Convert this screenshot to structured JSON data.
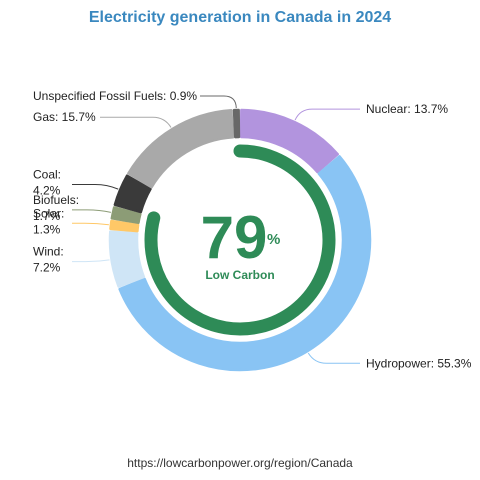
{
  "chart_data": {
    "type": "pie",
    "title": "Electricity generation in Canada in 2024",
    "categories": [
      "Nuclear",
      "Hydropower",
      "Wind",
      "Solar",
      "Biofuels",
      "Coal",
      "Gas",
      "Unspecified Fossil Fuels"
    ],
    "values": [
      13.7,
      55.3,
      7.2,
      1.3,
      1.7,
      4.2,
      15.7,
      0.9
    ],
    "slice_labels": [
      [
        "Nuclear: 13.7%"
      ],
      [
        "Hydropower: 55.3%"
      ],
      [
        "Wind:",
        "7.2%"
      ],
      [
        "Solar:",
        "1.3%"
      ],
      [
        "Biofuels:",
        "1.7%"
      ],
      [
        "Coal:",
        "4.2%"
      ],
      [
        "Gas: 15.7%"
      ],
      [
        "Unspecified Fossil Fuels: 0.9%"
      ]
    ],
    "colors": [
      "#b294de",
      "#89c4f4",
      "#cfe5f6",
      "#ffc867",
      "#8c9c76",
      "#3a3a3a",
      "#a9a9a9",
      "#686868"
    ],
    "center": {
      "value": "79",
      "unit": "%",
      "label": "Low Carbon",
      "low_carbon_share": 0.79,
      "color": "#2e8b57"
    }
  },
  "footer": {
    "source": "https://lowcarbonpower.org/region/Canada"
  }
}
